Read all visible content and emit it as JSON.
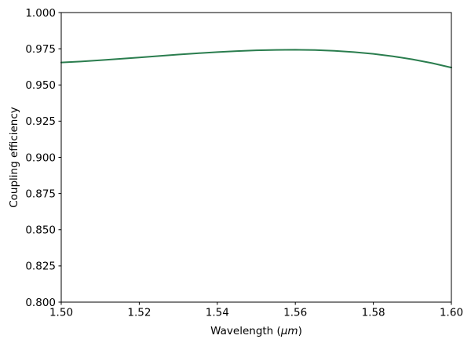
{
  "chart_data": {
    "type": "line",
    "title": "",
    "xlabel": {
      "prefix": "Wavelength (",
      "italic": "μm",
      "suffix": ")"
    },
    "ylabel": "Coupling efficiency",
    "xlim": [
      1.5,
      1.6
    ],
    "ylim": [
      0.8,
      1.0
    ],
    "grid": false,
    "legend": false,
    "background_color": "#ffffff",
    "spine_color": "#000000",
    "tick_color": "#000000",
    "xticks": {
      "values": [
        1.5,
        1.52,
        1.54,
        1.56,
        1.58,
        1.6
      ],
      "labels": [
        "1.50",
        "1.52",
        "1.54",
        "1.56",
        "1.58",
        "1.60"
      ]
    },
    "yticks": {
      "values": [
        0.8,
        0.825,
        0.85,
        0.875,
        0.9,
        0.925,
        0.95,
        0.975,
        1.0
      ],
      "labels": [
        "0.800",
        "0.825",
        "0.850",
        "0.875",
        "0.900",
        "0.925",
        "0.950",
        "0.975",
        "1.000"
      ]
    },
    "series": [
      {
        "name": "coupling-efficiency",
        "color": "#2a7d4e",
        "line_width": 2,
        "x": [
          1.5,
          1.505,
          1.51,
          1.515,
          1.52,
          1.525,
          1.53,
          1.535,
          1.54,
          1.545,
          1.55,
          1.555,
          1.56,
          1.565,
          1.57,
          1.575,
          1.58,
          1.585,
          1.59,
          1.595,
          1.6
        ],
        "y": [
          0.9655,
          0.9662,
          0.9671,
          0.968,
          0.969,
          0.97,
          0.971,
          0.9719,
          0.9727,
          0.9734,
          0.9739,
          0.9742,
          0.9743,
          0.9741,
          0.9736,
          0.9727,
          0.9715,
          0.9698,
          0.9677,
          0.9651,
          0.962
        ]
      }
    ]
  }
}
